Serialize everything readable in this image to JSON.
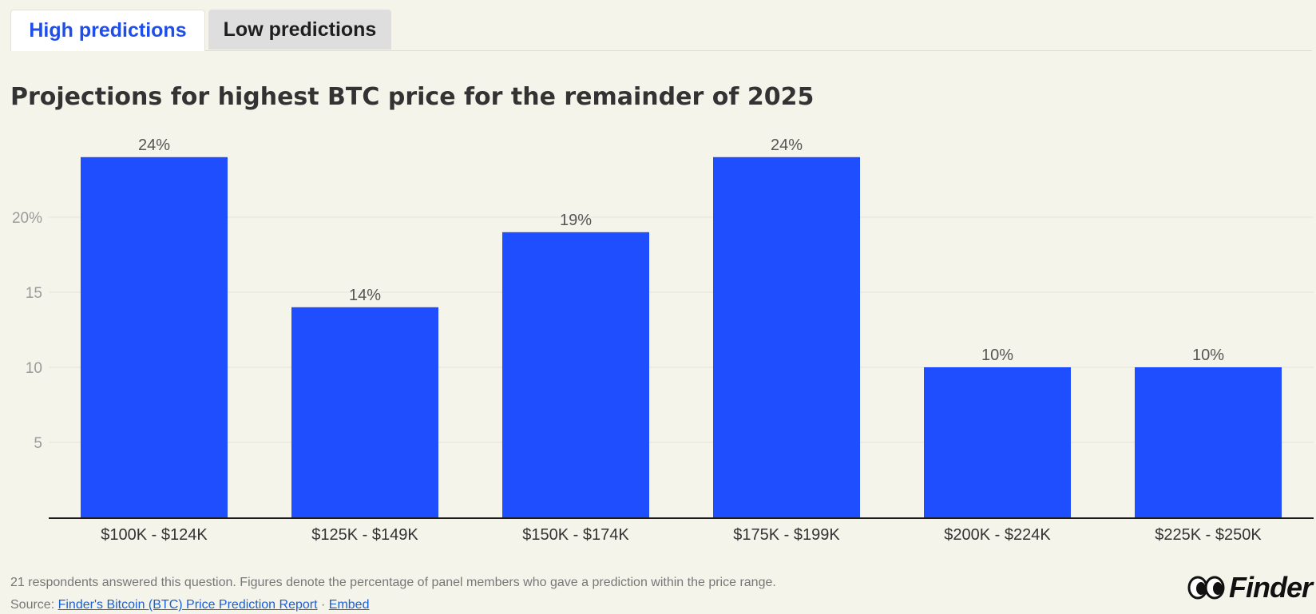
{
  "tabs": [
    {
      "label": "High predictions",
      "active": true
    },
    {
      "label": "Low predictions",
      "active": false
    }
  ],
  "chart_data": {
    "type": "bar",
    "title": "Projections for highest BTC price for the remainder of 2025",
    "categories": [
      "$100K - $124K",
      "$125K - $149K",
      "$150K - $174K",
      "$175K - $199K",
      "$200K - $224K",
      "$225K - $250K"
    ],
    "values": [
      24,
      14,
      19,
      24,
      10,
      10
    ],
    "data_labels": [
      "24%",
      "14%",
      "19%",
      "24%",
      "10%",
      "10%"
    ],
    "yticks": [
      5,
      10,
      15,
      20
    ],
    "ytick_labels": [
      "5",
      "10",
      "15",
      "20%"
    ],
    "ylim": [
      0,
      25
    ],
    "xlabel": "",
    "ylabel": "",
    "grid": true,
    "bar_color": "#1f4eff"
  },
  "footer": {
    "note": "21 respondents answered this question. Figures denote the percentage of panel members who gave a prediction within the price range.",
    "source_prefix": "Source:",
    "source_link": "Finder's Bitcoin (BTC) Price Prediction Report",
    "separator": "·",
    "embed_link": "Embed"
  },
  "logo": {
    "text": "Finder",
    "icon": "eyes-icon"
  }
}
